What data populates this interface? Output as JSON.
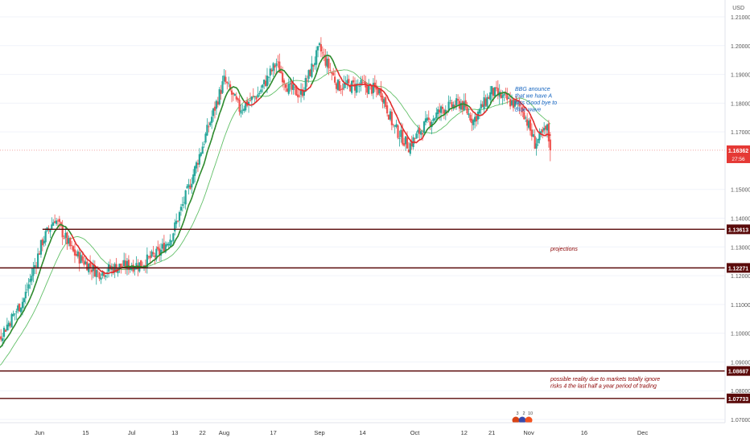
{
  "chart_data": {
    "type": "candlestick",
    "currency": "USD",
    "price_axis": {
      "min": 1.065,
      "max": 1.215,
      "ticks": [
        "1.21000",
        "1.20000",
        "1.19000",
        "1.18000",
        "1.17000",
        "1.15000",
        "1.14000",
        "1.13000",
        "1.12000",
        "1.11000",
        "1.10000",
        "1.09000",
        "1.08000",
        "1.07000"
      ],
      "tick_values": [
        1.21,
        1.2,
        1.19,
        1.18,
        1.17,
        1.15,
        1.14,
        1.13,
        1.12,
        1.11,
        1.1,
        1.09,
        1.08,
        1.07
      ]
    },
    "time_axis": {
      "labels": [
        "Jun",
        "15",
        "Jul",
        "13",
        "22",
        "Aug",
        "17",
        "Sep",
        "14",
        "Oct",
        "12",
        "21",
        "Nov",
        "16",
        "Dec"
      ],
      "label_days": [
        25,
        40,
        55,
        69,
        78,
        85,
        101,
        116,
        130,
        147,
        163,
        172,
        184,
        202,
        221
      ]
    },
    "candles": {
      "start_day": 0,
      "end_day": 191,
      "anchors": [
        [
          0,
          1.08
        ],
        [
          8,
          1.092
        ],
        [
          20,
          1.112
        ],
        [
          26,
          1.132
        ],
        [
          30,
          1.14
        ],
        [
          36,
          1.128
        ],
        [
          44,
          1.121
        ],
        [
          50,
          1.123
        ],
        [
          58,
          1.124
        ],
        [
          64,
          1.128
        ],
        [
          68,
          1.134
        ],
        [
          74,
          1.152
        ],
        [
          80,
          1.172
        ],
        [
          85,
          1.188
        ],
        [
          90,
          1.178
        ],
        [
          96,
          1.183
        ],
        [
          102,
          1.194
        ],
        [
          106,
          1.185
        ],
        [
          110,
          1.183
        ],
        [
          116,
          1.199
        ],
        [
          122,
          1.186
        ],
        [
          130,
          1.186
        ],
        [
          136,
          1.184
        ],
        [
          140,
          1.172
        ],
        [
          145,
          1.165
        ],
        [
          150,
          1.172
        ],
        [
          156,
          1.178
        ],
        [
          162,
          1.18
        ],
        [
          166,
          1.174
        ],
        [
          172,
          1.184
        ],
        [
          177,
          1.181
        ],
        [
          182,
          1.178
        ],
        [
          186,
          1.166
        ],
        [
          190,
          1.171
        ],
        [
          191,
          1.1636
        ]
      ]
    },
    "fast_ma_color_up": "#2e8b2e",
    "fast_ma_color_down": "#e03030",
    "slow_ma_color": "#3cb043",
    "levels": [
      {
        "value": 1.13613,
        "label": "1.13613",
        "start_day": 26
      },
      {
        "value": 1.12271,
        "label": "1.12271",
        "start_day": 0
      },
      {
        "value": 1.08687,
        "label": "1.08687",
        "start_day": 0
      },
      {
        "value": 1.07733,
        "label": "1.07733",
        "start_day": 0
      }
    ],
    "level_color": "#5a0a0a",
    "current_price": {
      "value": 1.16362,
      "label": "1.16362",
      "countdown": "27:56",
      "color": "#e53935"
    },
    "annotations": [
      {
        "id": "bbg-note",
        "lines": [
          "BBG anounce",
          "that we have A",
          "kiss Good bye to",
          "Blue wave"
        ],
        "color": "#1565c0"
      },
      {
        "id": "projections-note",
        "lines": [
          "projections"
        ],
        "color": "#8b0000"
      },
      {
        "id": "reality-note",
        "lines": [
          "possible reality due to markets totally ignore",
          "risks 4 the last half a year period of trading"
        ],
        "color": "#8b0000"
      }
    ],
    "event_markers": [
      "3",
      "2",
      "10"
    ]
  }
}
